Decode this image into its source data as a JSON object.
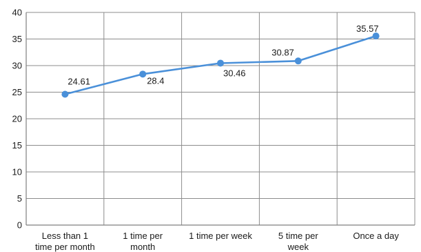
{
  "chart_data": {
    "type": "line",
    "title": "",
    "xlabel": "",
    "ylabel": "",
    "categories": [
      [
        "Less than 1",
        "time per month"
      ],
      [
        "1 time per",
        "month"
      ],
      [
        "1 time per week"
      ],
      [
        "5 time per",
        "week"
      ],
      [
        "Once a day"
      ]
    ],
    "series": [
      {
        "values": [
          24.61,
          28.4,
          30.46,
          30.87,
          35.57
        ],
        "labels": [
          "24.61",
          "28.4",
          "30.46",
          "30.87",
          "35.57"
        ],
        "color": "#4a90d9"
      }
    ],
    "ylim": [
      0,
      40
    ],
    "yticks": [
      0,
      5,
      10,
      15,
      20,
      25,
      30,
      35,
      40
    ],
    "grid": true,
    "legend": "none"
  }
}
